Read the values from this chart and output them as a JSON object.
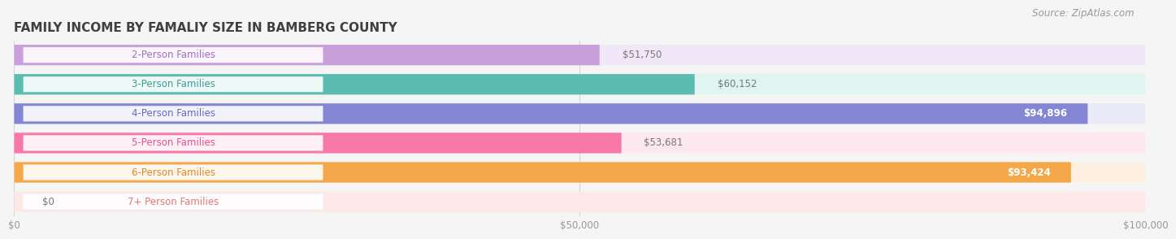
{
  "title": "FAMILY INCOME BY FAMALIY SIZE IN BAMBERG COUNTY",
  "source": "Source: ZipAtlas.com",
  "categories": [
    "2-Person Families",
    "3-Person Families",
    "4-Person Families",
    "5-Person Families",
    "6-Person Families",
    "7+ Person Families"
  ],
  "values": [
    51750,
    60152,
    94896,
    53681,
    93424,
    0
  ],
  "bar_colors": [
    "#c9a0dc",
    "#5bbcb0",
    "#8585d5",
    "#f878a8",
    "#f5a84a",
    "#f0a0a0"
  ],
  "bar_bg_colors": [
    "#f0e8f8",
    "#e0f5f2",
    "#eaeaf8",
    "#fde8f0",
    "#fef0e0",
    "#fde8e8"
  ],
  "label_colors": [
    "#a070c0",
    "#3a9e92",
    "#6868c0",
    "#e85090",
    "#e08828",
    "#e07878"
  ],
  "xlim": [
    0,
    100000
  ],
  "xticks": [
    0,
    50000,
    100000
  ],
  "xticklabels": [
    "$0",
    "$50,000",
    "$100,000"
  ],
  "title_fontsize": 11,
  "label_fontsize": 8.5,
  "value_fontsize": 8.5,
  "source_fontsize": 8.5,
  "background_color": "#f5f5f5"
}
